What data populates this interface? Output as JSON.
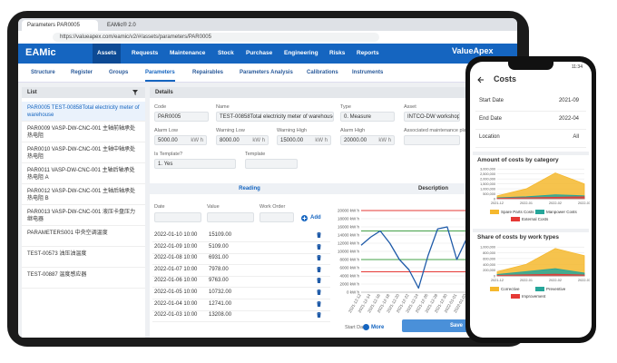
{
  "browser": {
    "tabs": [
      "Parameters PAR0005",
      "EAMic® 2.0"
    ],
    "url": "https://valueapex.com/eamic/v2/#/assets/parameters/PAR0005"
  },
  "nav": {
    "logo": "EAMic",
    "items": [
      "Assets",
      "Requests",
      "Maintenance",
      "Stock",
      "Purchase",
      "Engineering",
      "Risks",
      "Reports"
    ],
    "brand": "ValueApex"
  },
  "subnav": {
    "items": [
      "Structure",
      "Register",
      "Groups",
      "Parameters",
      "Repairables",
      "Parameters Analysis",
      "Calibrations",
      "Instruments"
    ],
    "active": 3
  },
  "list": {
    "title": "List",
    "items": [
      "PAR0005 TEST-00858Total electricity meter of warehouse",
      "PAR0009 VASP-DW-CNC-001 主轴前轴承处热电阻",
      "PAR0010 VASP-DW-CNC-001 主轴中轴承处热电阻",
      "PAR0011 VASP-DW-CNC-001 主轴后轴承处热电阻 A",
      "PAR0012 VASP-DW-CNC-001 主轴后轴承处热电阻 B",
      "PAR0013 VASP-DW-CNC-001 液压卡盘压力继电器",
      "PARAMETERS001 中央空调温度",
      "TEST-00573 油压油温度",
      "TEST-00887 温度感应器"
    ],
    "selected": 0
  },
  "details": {
    "title": "Details",
    "row1": [
      {
        "label": "Code",
        "value": "PAR0005"
      },
      {
        "label": "Name",
        "value": "TEST-00858Total electricity meter of warehouse"
      },
      {
        "label": "Type",
        "value": "0. Measure"
      },
      {
        "label": "Asset",
        "value": "INTCO-DW workshop"
      }
    ],
    "row2": [
      {
        "label": "Alarm Low",
        "value": "5000.00",
        "unit": "kW h"
      },
      {
        "label": "Warning Low",
        "value": "8000.00",
        "unit": "kW h"
      },
      {
        "label": "Warning High",
        "value": "15000.00",
        "unit": "kW h"
      },
      {
        "label": "Alarm High",
        "value": "20000.00",
        "unit": "kW h"
      },
      {
        "label": "Associated maintenance plan"
      }
    ],
    "row3": [
      {
        "label": "Is Template?",
        "value": "1. Yes"
      },
      {
        "label": "Template"
      }
    ]
  },
  "reading": {
    "title": "Reading",
    "columns": [
      "Date",
      "Value",
      "Work Order"
    ],
    "add": "Add",
    "rows": [
      [
        "2022-01-10 10:00",
        "15109.00"
      ],
      [
        "2022-01-09 10:00",
        "5109.00"
      ],
      [
        "2022-01-08 10:00",
        "6931.00"
      ],
      [
        "2022-01-07 10:00",
        "7978.00"
      ],
      [
        "2022-01-06 10:00",
        "9763.00"
      ],
      [
        "2022-01-05 10:00",
        "10732.00"
      ],
      [
        "2022-01-04 10:00",
        "12741.00"
      ],
      [
        "2022-01-03 10:00",
        "13208.00"
      ]
    ]
  },
  "description": {
    "title": "Description",
    "chart": {
      "type": "line",
      "ylim": [
        0,
        20000
      ],
      "yticks": [
        {
          "value": 0,
          "label": "0 kW h"
        },
        {
          "value": 2000,
          "label": "2000 kW h"
        },
        {
          "value": 4000,
          "label": "4000 kW h"
        },
        {
          "value": 6000,
          "label": "6000 kW h"
        },
        {
          "value": 8000,
          "label": "8000 kW h"
        },
        {
          "value": 10000,
          "label": "10000 kW h"
        },
        {
          "value": 12000,
          "label": "12000 kW h"
        },
        {
          "value": 14000,
          "label": "14000 kW h"
        },
        {
          "value": 16000,
          "label": "16000 kW h"
        },
        {
          "value": 18000,
          "label": "18000 kW h"
        },
        {
          "value": 20000,
          "label": "20000 kW h"
        }
      ],
      "categories": [
        "2021-12-12",
        "2021-12-14",
        "2021-12-16",
        "2021-12-18",
        "2021-12-20",
        "2021-12-22",
        "2021-12-24",
        "2021-12-26",
        "2021-12-28",
        "2021-12-30",
        "2022-01-01",
        "2022-01-03"
      ],
      "series": [
        {
          "color": "#1e5aa8",
          "values": [
            11500,
            13500,
            15000,
            12000,
            8000,
            5500,
            1000,
            9000,
            15500,
            16000,
            8000,
            13000
          ]
        }
      ],
      "limits": [
        {
          "value": 5000,
          "color": "#e53935"
        },
        {
          "value": 8000,
          "color": "#43a047"
        },
        {
          "value": 15000,
          "color": "#43a047"
        },
        {
          "value": 20000,
          "color": "#e53935"
        }
      ]
    }
  },
  "footer": {
    "start_date": "Start Date",
    "end_date": "End Date",
    "more": "More",
    "save": "Save"
  },
  "phone": {
    "time": "11:34",
    "title": "Costs",
    "filters": [
      {
        "label": "Start Date",
        "value": "2021-09"
      },
      {
        "label": "End Date",
        "value": "2022-04"
      },
      {
        "label": "Location",
        "value": "All"
      }
    ],
    "charts": [
      {
        "type": "area",
        "title": "Amount of costs by category",
        "ylim": [
          0,
          3200000
        ],
        "yticks": [
          0,
          {
            "value": 500000,
            "label": "500,000"
          },
          {
            "value": 1000000,
            "label": "1,000,000"
          },
          {
            "value": 1500000,
            "label": "1,500,000"
          },
          {
            "value": 2000000,
            "label": "2,000,000"
          },
          {
            "value": 2500000,
            "label": "2,500,000"
          },
          {
            "value": 3000000,
            "label": "3,000,000"
          }
        ],
        "categories": [
          "2021-12",
          "2022-01",
          "2022-02",
          "2022-03"
        ],
        "series": [
          {
            "name": "Spare Parts Costs",
            "color": "#f5b82e",
            "values": [
              300000,
              1000000,
              2600000,
              1500000
            ]
          },
          {
            "name": "Manpower Costs",
            "color": "#26a69a",
            "values": [
              100000,
              200000,
              400000,
              300000
            ]
          },
          {
            "name": "External Costs",
            "color": "#e53935",
            "values": [
              50000,
              100000,
              150000,
              200000
            ]
          }
        ]
      },
      {
        "type": "area",
        "title": "Share of costs by work types",
        "ylim": [
          0,
          1100000
        ],
        "yticks": [
          0,
          {
            "value": 200000,
            "label": "200,000"
          },
          {
            "value": 400000,
            "label": "400,000"
          },
          {
            "value": 600000,
            "label": "600,000"
          },
          {
            "value": 800000,
            "label": "800,000"
          },
          {
            "value": 1000000,
            "label": "1,000,000"
          }
        ],
        "categories": [
          "2021-12",
          "2022-01",
          "2022-02",
          "2022-03"
        ],
        "series": [
          {
            "name": "Corrective",
            "color": "#f5b82e",
            "values": [
              150000,
              400000,
              950000,
              700000
            ]
          },
          {
            "name": "Preventive",
            "color": "#26a69a",
            "values": [
              50000,
              150000,
              250000,
              100000
            ]
          },
          {
            "name": "Improvement",
            "color": "#e53935",
            "values": [
              20000,
              40000,
              60000,
              30000
            ]
          }
        ]
      }
    ]
  }
}
